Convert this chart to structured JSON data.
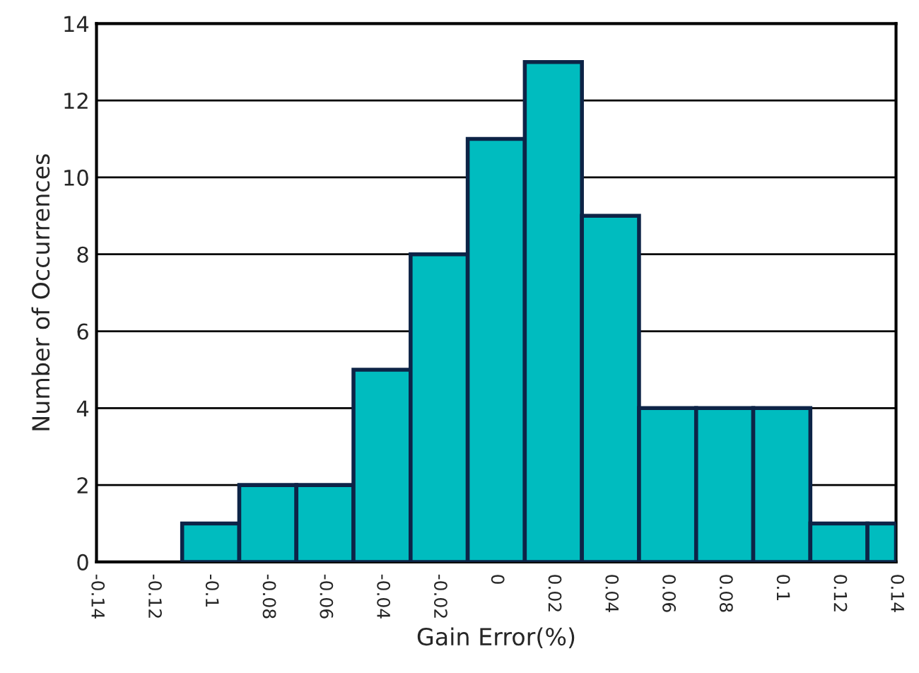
{
  "chart_data": {
    "type": "histogram",
    "xlabel": "Gain Error(%)",
    "ylabel": "Number of Occurrences",
    "bins": [
      -0.11,
      -0.09,
      -0.07,
      -0.05,
      -0.03,
      -0.01,
      0.01,
      0.03,
      0.05,
      0.07,
      0.09,
      0.11,
      0.13,
      0.14
    ],
    "values": [
      1,
      2,
      2,
      5,
      8,
      11,
      13,
      9,
      4,
      4,
      4,
      1,
      1
    ],
    "color": "#00bcbf",
    "xlim": [
      -0.14,
      0.14
    ],
    "xticks": [
      -0.14,
      -0.12,
      -0.1,
      -0.08,
      -0.06,
      -0.04,
      -0.02,
      0,
      0.02,
      0.04,
      0.06,
      0.08,
      0.1,
      0.12,
      0.14
    ],
    "ylim": [
      0,
      14
    ],
    "yticks": [
      0,
      2,
      4,
      6,
      8,
      10,
      12,
      14
    ],
    "grid": "y"
  }
}
